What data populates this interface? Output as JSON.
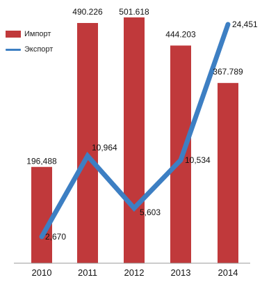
{
  "chart_data": {
    "type": "bar",
    "categories": [
      "2010",
      "2011",
      "2012",
      "2013",
      "2014"
    ],
    "series": [
      {
        "name": "Импорт",
        "type": "bar",
        "values": [
          196488,
          490226,
          501618,
          444203,
          367789
        ],
        "labels": [
          "196,488",
          "490.226",
          "501.618",
          "444.203",
          "367.789"
        ],
        "color": "#c0393b"
      },
      {
        "name": "Экспорт",
        "type": "line",
        "values": [
          2670,
          10964,
          5603,
          10534,
          24451
        ],
        "labels": [
          "2,670",
          "10,964",
          "5,603",
          "10,534",
          "24,451"
        ],
        "color": "#3d7fc3"
      }
    ],
    "legend": "top-left",
    "grid": false
  }
}
